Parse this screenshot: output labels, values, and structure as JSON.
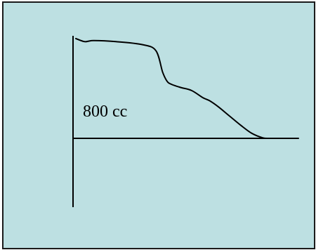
{
  "chart_data": {
    "type": "line",
    "title": "",
    "xlabel": "",
    "ylabel": "",
    "annotations": [
      "800 cc"
    ],
    "grid": false,
    "legend": "none",
    "xlim": [
      0,
      100
    ],
    "ylim": [
      -30,
      100
    ],
    "series": [
      {
        "x": [
          0,
          4,
          8,
          18,
          30,
          36,
          39,
          41,
          43,
          47,
          52,
          57,
          60,
          64,
          69,
          74,
          79,
          84,
          87,
          90,
          94,
          98,
          100
        ],
        "y": [
          98,
          95,
          96,
          95,
          92,
          86,
          65,
          56,
          53,
          50,
          47,
          40,
          37,
          31,
          22,
          13,
          5,
          0.5,
          0,
          0,
          0,
          0,
          0
        ],
        "color": "#000000"
      }
    ]
  },
  "colors": {
    "background": "#bde0e2",
    "border": "#1a1a1a",
    "line": "#000000"
  }
}
